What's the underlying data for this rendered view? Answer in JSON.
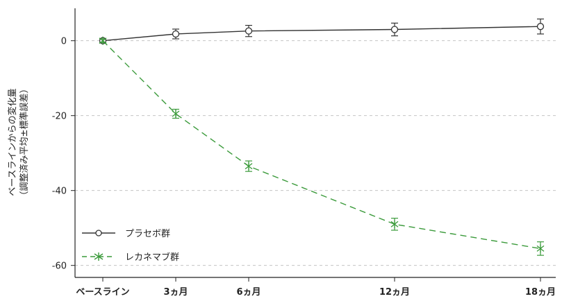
{
  "chart_data": {
    "type": "line",
    "categories": [
      "ベースライン",
      "3ヵ月",
      "6ヵ月",
      "12ヵ月",
      "18ヵ月"
    ],
    "x_months": [
      0,
      3,
      6,
      12,
      18
    ],
    "ylabel_line1": "ベースラインからの変化量",
    "ylabel_line2": "（調整済み平均±標準誤差）",
    "yticks": [
      0,
      -20,
      -40,
      -60
    ],
    "ylim": [
      -62,
      8
    ],
    "grid": "horizontal dashed",
    "legend_position": "bottom-left",
    "series": [
      {
        "name": "プラセボ群",
        "values": [
          0,
          1.8,
          2.6,
          3.0,
          3.8
        ],
        "errors": [
          0.5,
          1.3,
          1.5,
          1.7,
          2.0
        ],
        "color": "#333333",
        "style": "solid",
        "marker": "circle"
      },
      {
        "name": "レカネマブ群",
        "values": [
          0,
          -19.5,
          -33.5,
          -49,
          -55.5
        ],
        "errors": [
          0.5,
          1.2,
          1.4,
          1.6,
          1.8
        ],
        "color": "#3a9a3a",
        "style": "dashed",
        "marker": "star"
      }
    ]
  }
}
